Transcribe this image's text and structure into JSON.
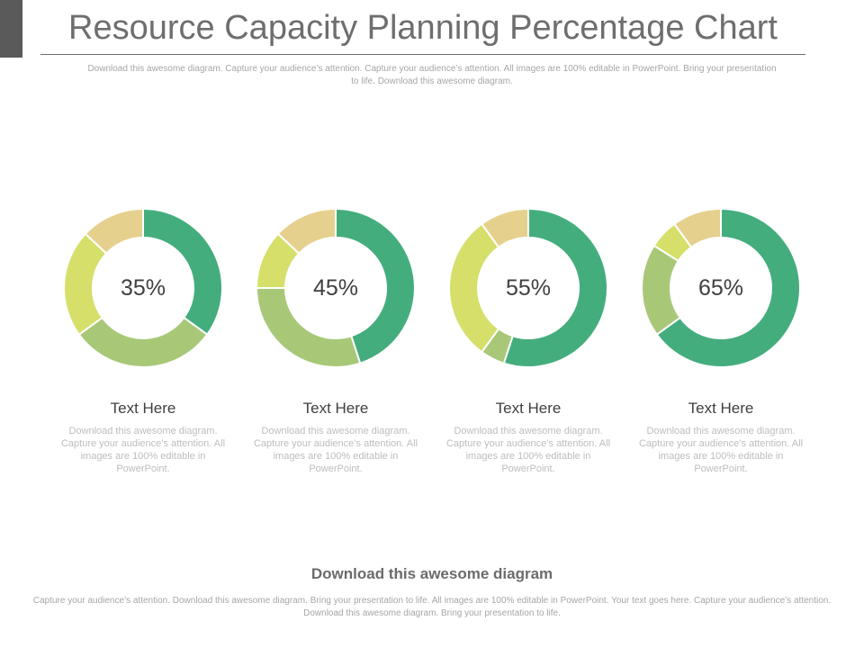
{
  "colors": {
    "primary_green": "#44ad7e",
    "light_green": "#a8c878",
    "lime": "#d5df6a",
    "tan": "#e6d08e"
  },
  "header": {
    "title": "Resource Capacity Planning Percentage Chart",
    "subtitle": "Download this awesome diagram. Capture your audience’s attention. Capture your audience’s attention. All images are 100% editable in PowerPoint. Bring your presentation to life. Download this awesome diagram."
  },
  "chart_data": [
    {
      "type": "pie",
      "label": "35%",
      "heading": "Text Here",
      "description": "Download this awesome diagram. Capture your audience’s attention. All images are 100% editable in PowerPoint.",
      "segments": [
        {
          "value": 35,
          "color": "#44ad7e"
        },
        {
          "value": 30,
          "color": "#a8c878"
        },
        {
          "value": 22,
          "color": "#d5df6a"
        },
        {
          "value": 13,
          "color": "#e6d08e"
        }
      ]
    },
    {
      "type": "pie",
      "label": "45%",
      "heading": "Text Here",
      "description": "Download this awesome diagram. Capture your audience’s attention. All images are 100% editable in PowerPoint.",
      "segments": [
        {
          "value": 45,
          "color": "#44ad7e"
        },
        {
          "value": 30,
          "color": "#a8c878"
        },
        {
          "value": 12,
          "color": "#d5df6a"
        },
        {
          "value": 13,
          "color": "#e6d08e"
        }
      ]
    },
    {
      "type": "pie",
      "label": "55%",
      "heading": "Text Here",
      "description": "Download this awesome diagram. Capture your audience’s attention. All images are 100% editable in PowerPoint.",
      "segments": [
        {
          "value": 55,
          "color": "#44ad7e"
        },
        {
          "value": 5,
          "color": "#a8c878"
        },
        {
          "value": 30,
          "color": "#d5df6a"
        },
        {
          "value": 10,
          "color": "#e6d08e"
        }
      ]
    },
    {
      "type": "pie",
      "label": "65%",
      "heading": "Text Here",
      "description": "Download this awesome diagram. Capture your audience’s attention. All images are 100% editable in PowerPoint.",
      "segments": [
        {
          "value": 65,
          "color": "#44ad7e"
        },
        {
          "value": 19,
          "color": "#a8c878"
        },
        {
          "value": 6,
          "color": "#d5df6a"
        },
        {
          "value": 10,
          "color": "#e6d08e"
        }
      ]
    }
  ],
  "footer": {
    "heading": "Download this awesome diagram",
    "text": "Capture your audience’s attention. Download this  awesome diagram. Bring your presentation to life. All images are 100% editable in PowerPoint. Your text  goes here. Capture your audience’s attention. Download this  awesome diagram. Bring your presentation to life."
  }
}
